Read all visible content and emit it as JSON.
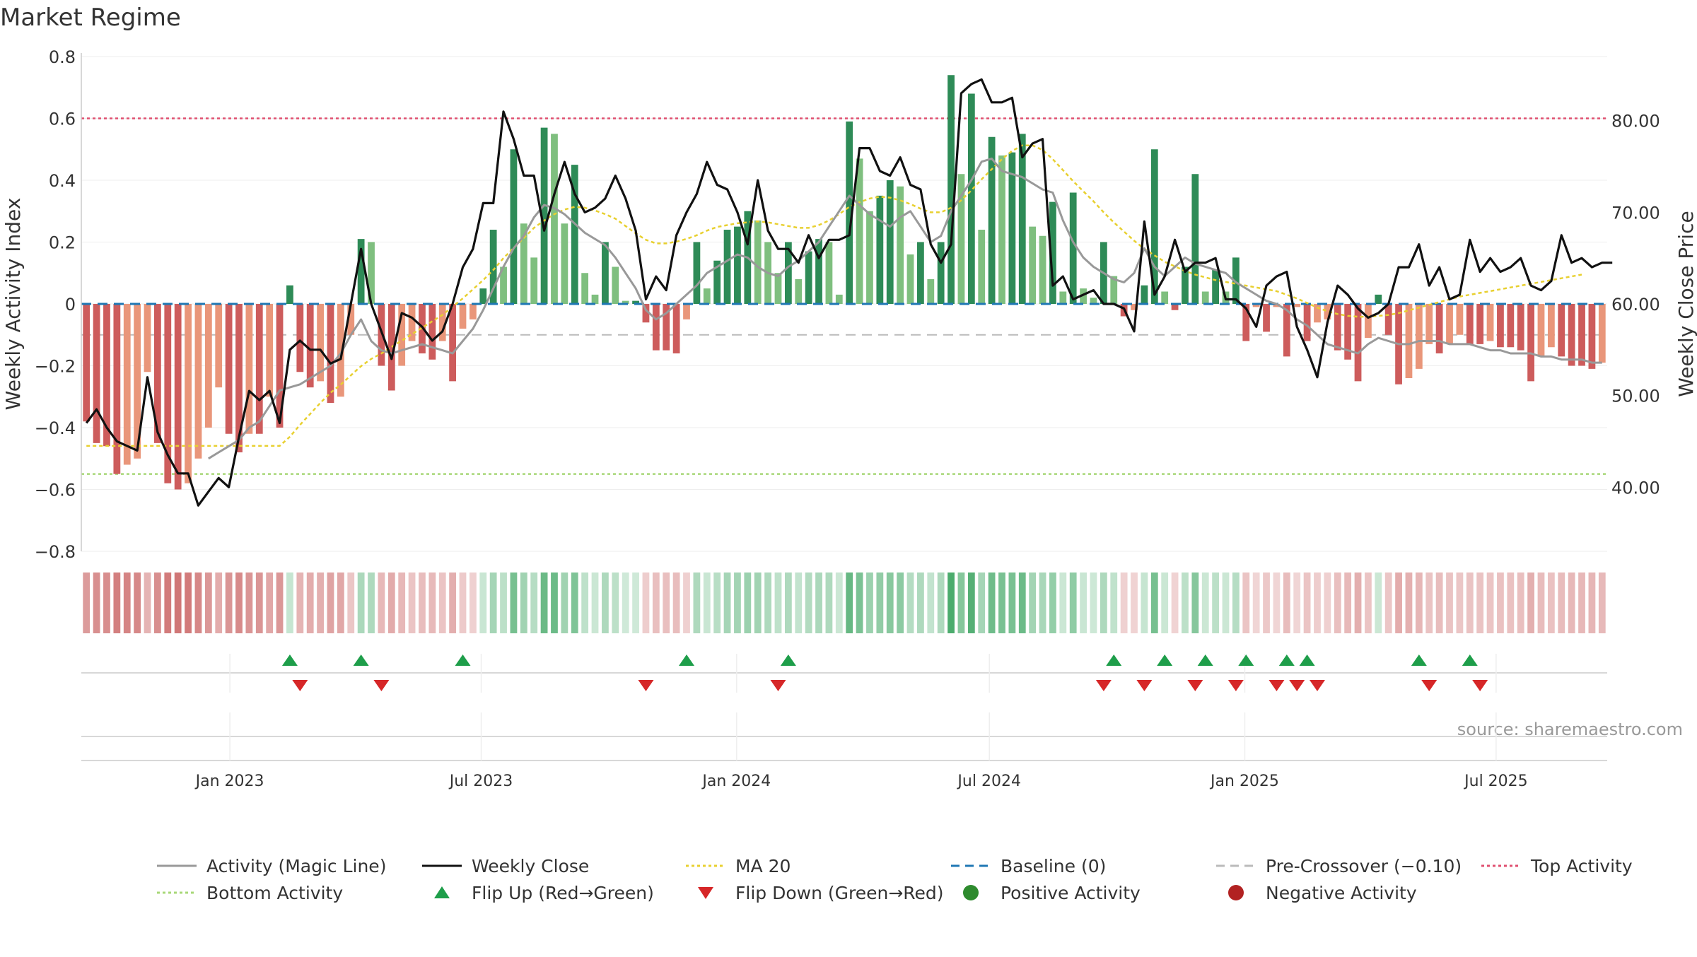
{
  "chart_data": {
    "type": "bar",
    "title": "Market Regime",
    "ylabel_left": "Weekly Activity Index",
    "ylabel_right": "Weekly Close Price",
    "source": "source: sharemaestro.com",
    "x_start": "2022-09-16",
    "x_end": "2025-09-19",
    "x_ticks": [
      "Jan 2023",
      "Jul 2023",
      "Jan 2024",
      "Jul 2024",
      "Jan 2025",
      "Jul 2025"
    ],
    "x_tick_dates": [
      "2023-01-01",
      "2023-07-01",
      "2024-01-01",
      "2024-07-01",
      "2025-01-01",
      "2025-07-01"
    ],
    "ylim_left": [
      -0.8,
      0.8
    ],
    "yticks_left": [
      "0.8",
      "0.6",
      "0.4",
      "0.2",
      "0",
      "−0.2",
      "−0.4",
      "−0.6",
      "−0.8"
    ],
    "ylim_right": [
      33.0,
      87.0
    ],
    "yticks_right": [
      "80.00",
      "70.00",
      "60.00",
      "50.00",
      "40.00"
    ],
    "reference_lines": {
      "top_activity": 0.6,
      "bottom_activity": -0.55,
      "baseline": 0,
      "pre_crossover": -0.1
    },
    "colors": {
      "pos_strong": "#2e8b57",
      "pos_weak": "#7fbf7f",
      "neg_strong": "#cd5c5c",
      "neg_weak": "#e9967a",
      "close": "#111111",
      "magic": "#999999",
      "ma20": "#e8d030",
      "baseline": "#1f77b4",
      "pre": "#bbbbbb",
      "top": "#e05070",
      "bottom": "#a8d878",
      "flip_up": "#1e9e4a",
      "flip_down": "#d62728"
    },
    "activity": [
      -0.38,
      -0.45,
      -0.46,
      -0.55,
      -0.52,
      -0.5,
      -0.22,
      -0.45,
      -0.58,
      -0.6,
      -0.58,
      -0.5,
      -0.4,
      -0.27,
      -0.42,
      -0.48,
      -0.42,
      -0.42,
      -0.3,
      -0.4,
      0.06,
      -0.22,
      -0.27,
      -0.25,
      -0.32,
      -0.3,
      -0.1,
      0.21,
      0.2,
      -0.2,
      -0.28,
      -0.2,
      -0.12,
      -0.16,
      -0.18,
      -0.12,
      -0.25,
      -0.08,
      -0.05,
      0.05,
      0.24,
      0.12,
      0.5,
      0.26,
      0.15,
      0.57,
      0.55,
      0.26,
      0.45,
      0.1,
      0.03,
      0.2,
      0.12,
      0.01,
      0.01,
      -0.06,
      -0.15,
      -0.15,
      -0.16,
      -0.05,
      0.2,
      0.05,
      0.14,
      0.24,
      0.25,
      0.3,
      0.27,
      0.2,
      0.1,
      0.2,
      0.08,
      0.17,
      0.21,
      0.2,
      0.03,
      0.59,
      0.47,
      0.3,
      0.35,
      0.4,
      0.38,
      0.16,
      0.2,
      0.08,
      0.2,
      0.74,
      0.42,
      0.68,
      0.24,
      0.54,
      0.48,
      0.49,
      0.55,
      0.25,
      0.22,
      0.33,
      0.04,
      0.36,
      0.05,
      0.02,
      0.2,
      0.09,
      -0.04,
      -0.02,
      0.06,
      0.5,
      0.04,
      -0.02,
      0.12,
      0.42,
      0.04,
      0.11,
      0.04,
      0.15,
      -0.12,
      -0.01,
      -0.09,
      -0.01,
      -0.17,
      -0.01,
      -0.12,
      -0.06,
      -0.05,
      -0.15,
      -0.18,
      -0.25,
      -0.11,
      0.03,
      -0.1,
      -0.26,
      -0.24,
      -0.21,
      -0.13,
      -0.16,
      -0.13,
      -0.1,
      -0.13,
      -0.13,
      -0.12,
      -0.14,
      -0.14,
      -0.15,
      -0.25,
      -0.17,
      -0.14,
      -0.17,
      -0.2,
      -0.2,
      -0.21,
      -0.19
    ],
    "close": [
      47,
      48.5,
      46.5,
      45,
      44.5,
      44,
      52,
      46,
      43.5,
      41.5,
      41.5,
      38,
      39.5,
      41,
      40,
      45.5,
      50.5,
      49.5,
      50.5,
      47,
      55,
      56,
      55,
      55,
      53.5,
      54,
      60,
      66,
      60,
      57,
      54,
      59,
      58.5,
      57.5,
      56,
      57,
      60,
      64,
      66,
      71,
      71,
      81,
      78,
      74,
      74,
      68,
      72,
      75.5,
      72,
      70,
      70.5,
      71.5,
      74,
      71.5,
      68,
      60.5,
      63,
      61.5,
      67.5,
      70,
      72,
      75.5,
      73,
      72.5,
      70,
      66.5,
      73.5,
      68,
      66,
      66,
      64.5,
      67.5,
      65,
      67,
      67,
      67.5,
      77,
      77,
      74.5,
      74,
      76,
      73,
      72.5,
      66.5,
      64.5,
      66.5,
      83,
      84,
      84.5,
      82,
      82,
      82.5,
      76,
      77.5,
      78,
      62,
      63,
      60.5,
      61,
      61.5,
      60,
      60,
      59.5,
      57,
      69,
      61,
      63,
      67,
      63.5,
      64.5,
      64.5,
      65,
      60.5,
      60.5,
      59.5,
      57.5,
      62,
      63,
      63.5,
      57.5,
      55,
      52,
      58,
      62,
      61,
      59.5,
      58.5,
      59,
      60,
      64,
      64,
      66.5,
      62,
      64,
      60.5,
      61,
      67,
      63.5,
      65,
      63.5,
      64,
      65,
      62,
      61.5,
      62.5,
      67.5,
      64.5,
      65,
      64,
      64.5,
      64.5
    ],
    "magic": [
      null,
      null,
      null,
      null,
      null,
      null,
      null,
      null,
      null,
      null,
      null,
      null,
      -0.5,
      -0.48,
      -0.46,
      -0.44,
      -0.4,
      -0.38,
      -0.33,
      -0.28,
      -0.27,
      -0.26,
      -0.24,
      -0.22,
      -0.2,
      -0.16,
      -0.1,
      -0.05,
      -0.12,
      -0.15,
      -0.16,
      -0.15,
      -0.14,
      -0.13,
      -0.14,
      -0.15,
      -0.16,
      -0.12,
      -0.08,
      -0.02,
      0.05,
      0.12,
      0.18,
      0.22,
      0.28,
      0.32,
      0.31,
      0.29,
      0.26,
      0.23,
      0.21,
      0.19,
      0.15,
      0.1,
      0.05,
      -0.02,
      -0.05,
      -0.03,
      0.0,
      0.03,
      0.06,
      0.1,
      0.12,
      0.14,
      0.16,
      0.15,
      0.12,
      0.1,
      0.09,
      0.12,
      0.14,
      0.17,
      0.2,
      0.25,
      0.3,
      0.35,
      0.32,
      0.29,
      0.27,
      0.25,
      0.28,
      0.3,
      0.25,
      0.2,
      0.22,
      0.3,
      0.35,
      0.4,
      0.46,
      0.47,
      0.43,
      0.42,
      0.41,
      0.39,
      0.37,
      0.36,
      0.27,
      0.2,
      0.15,
      0.12,
      0.1,
      0.08,
      0.07,
      0.1,
      0.18,
      0.12,
      0.09,
      0.12,
      0.15,
      0.13,
      0.12,
      0.11,
      0.1,
      0.07,
      0.05,
      0.03,
      0.01,
      0.0,
      -0.02,
      -0.05,
      -0.07,
      -0.1,
      -0.13,
      -0.14,
      -0.15,
      -0.16,
      -0.13,
      -0.11,
      -0.12,
      -0.13,
      -0.13,
      -0.12,
      -0.12,
      -0.12,
      -0.13,
      -0.13,
      -0.13,
      -0.14,
      -0.15,
      -0.15,
      -0.16,
      -0.16,
      -0.16,
      -0.17,
      -0.17,
      -0.18,
      -0.18,
      -0.18,
      -0.19,
      -0.19
    ],
    "ma20": [
      44.5,
      44.5,
      44.5,
      44.5,
      44.5,
      44.5,
      44.5,
      44.5,
      44.5,
      44.5,
      44.5,
      44.5,
      44.5,
      44.5,
      44.5,
      44.5,
      44.5,
      44.5,
      44.5,
      44.5,
      45.5,
      46.8,
      48.0,
      49.2,
      50.3,
      51.2,
      52.2,
      53.2,
      54.0,
      54.6,
      55.3,
      56.0,
      56.7,
      57.4,
      58.1,
      58.8,
      59.7,
      60.6,
      61.6,
      62.6,
      63.7,
      65.0,
      66.1,
      67.2,
      68.3,
      69.1,
      69.8,
      70.3,
      70.6,
      70.5,
      70.2,
      69.8,
      69.3,
      68.5,
      67.7,
      67.0,
      66.6,
      66.6,
      66.8,
      67.1,
      67.5,
      68.0,
      68.4,
      68.6,
      68.8,
      68.9,
      69.0,
      68.9,
      68.7,
      68.5,
      68.3,
      68.3,
      68.6,
      69.1,
      69.8,
      70.6,
      71.1,
      71.5,
      71.7,
      71.6,
      71.3,
      70.9,
      70.4,
      70.0,
      70.0,
      70.5,
      71.3,
      72.4,
      73.6,
      74.7,
      75.8,
      76.7,
      77.3,
      77.3,
      76.8,
      75.8,
      74.6,
      73.4,
      72.3,
      71.2,
      70.0,
      68.9,
      67.9,
      66.9,
      66.0,
      65.3,
      64.6,
      64.1,
      63.6,
      63.2,
      62.9,
      62.6,
      62.4,
      62.2,
      62.0,
      61.8,
      61.6,
      61.4,
      61.0,
      60.6,
      60.1,
      59.6,
      59.2,
      58.9,
      58.7,
      58.6,
      58.6,
      58.7,
      58.8,
      59.0,
      59.3,
      59.6,
      59.9,
      60.2,
      60.5,
      60.8,
      61.0,
      61.2,
      61.4,
      61.6,
      61.8,
      62.0,
      62.2,
      62.4,
      62.6,
      62.8,
      63.0,
      63.2
    ],
    "flip_up_idx": [
      20,
      27,
      37,
      59,
      69,
      101,
      106,
      110,
      114,
      118,
      120,
      131,
      136
    ],
    "flip_down_idx": [
      21,
      29,
      55,
      68,
      100,
      104,
      109,
      113,
      117,
      119,
      121,
      132,
      137
    ],
    "legend": [
      {
        "label": "Activity (Magic Line)",
        "kind": "line",
        "color": "#999999",
        "dash": ""
      },
      {
        "label": "Weekly Close",
        "kind": "line",
        "color": "#111111",
        "dash": ""
      },
      {
        "label": "MA 20",
        "kind": "line",
        "color": "#e8d030",
        "dash": "4,4"
      },
      {
        "label": "Baseline (0)",
        "kind": "line",
        "color": "#1f77b4",
        "dash": "12,8"
      },
      {
        "label": "Pre-Crossover (−0.10)",
        "kind": "line",
        "color": "#bbbbbb",
        "dash": "12,8"
      },
      {
        "label": "Top Activity",
        "kind": "line",
        "color": "#e05070",
        "dash": "4,4"
      },
      {
        "label": "Bottom Activity",
        "kind": "line",
        "color": "#a8d878",
        "dash": "4,4"
      },
      {
        "label": "Flip Up (Red→Green)",
        "kind": "tri-up",
        "color": "#1e9e4a"
      },
      {
        "label": "Flip Down (Green→Red)",
        "kind": "tri-down",
        "color": "#d62728"
      },
      {
        "label": "Positive Activity",
        "kind": "dot",
        "color": "#2e8b2e"
      },
      {
        "label": "Negative Activity",
        "kind": "dot",
        "color": "#b22222"
      }
    ]
  }
}
